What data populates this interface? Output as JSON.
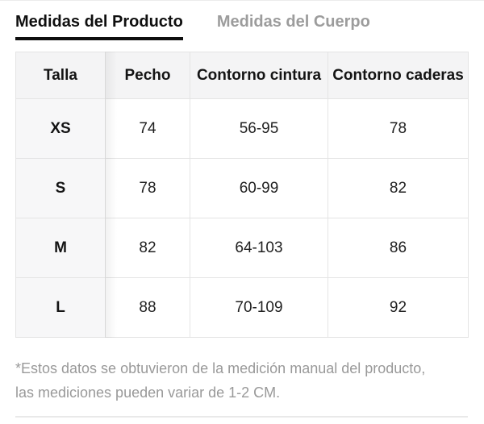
{
  "tabs": {
    "product_label": "Medidas del Producto",
    "body_label": "Medidas del Cuerpo"
  },
  "table": {
    "columns": [
      "Talla",
      "Pecho",
      "Contorno cintura",
      "Contorno caderas"
    ],
    "rows": [
      [
        "XS",
        "74",
        "56-95",
        "78"
      ],
      [
        "S",
        "78",
        "60-99",
        "82"
      ],
      [
        "M",
        "82",
        "64-103",
        "86"
      ],
      [
        "L",
        "88",
        "70-109",
        "92"
      ]
    ]
  },
  "footnote": {
    "line1": "*Estos datos se obtuvieron de la medición manual del producto,",
    "line2": "las mediciones pueden variar de 1-2 CM."
  },
  "colors": {
    "tab_active_text": "#0f0f0f",
    "tab_inactive_text": "#9c9c9c",
    "header_bg": "#f4f4f5",
    "sticky_column_bg": "#f7f7f8",
    "table_border": "#e4e4e4",
    "footnote_text": "#999999"
  }
}
